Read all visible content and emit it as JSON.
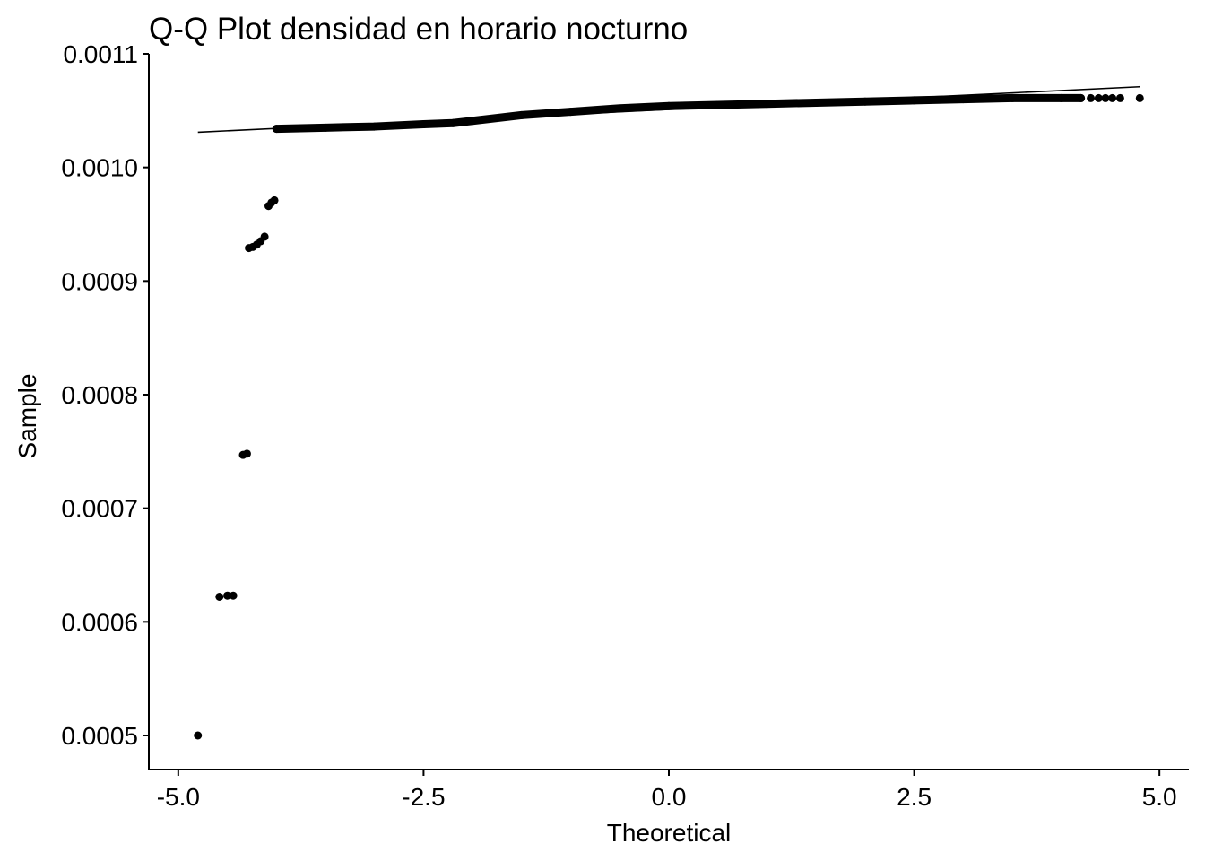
{
  "chart_data": {
    "type": "scatter",
    "title": "Q-Q Plot densidad en horario nocturno",
    "xlabel": "Theoretical",
    "ylabel": "Sample",
    "xlim": [
      -5.3,
      5.3
    ],
    "ylim": [
      0.00047,
      0.0011
    ],
    "x_ticks": [
      -5.0,
      -2.5,
      0.0,
      2.5,
      5.0
    ],
    "x_tick_labels": [
      "-5.0",
      "-2.5",
      "0.0",
      "2.5",
      "5.0"
    ],
    "y_ticks": [
      0.0005,
      0.0006,
      0.0007,
      0.0008,
      0.0009,
      0.001,
      0.0011
    ],
    "y_tick_labels": [
      "0.0005",
      "0.0006",
      "0.0007",
      "0.0008",
      "0.0009",
      "0.0010",
      "0.0011"
    ],
    "grid": false,
    "legend": "none",
    "colors": {
      "points": "#000000",
      "line": "#000000",
      "axis": "#000000"
    },
    "reference_line": {
      "x": [
        -4.8,
        4.8
      ],
      "y": [
        0.001031,
        0.001071
      ]
    },
    "outliers": [
      {
        "x": -4.8,
        "y": 0.0005
      },
      {
        "x": -4.58,
        "y": 0.000622
      },
      {
        "x": -4.5,
        "y": 0.000623
      },
      {
        "x": -4.44,
        "y": 0.000623
      },
      {
        "x": -4.34,
        "y": 0.000747
      },
      {
        "x": -4.3,
        "y": 0.000748
      },
      {
        "x": -4.28,
        "y": 0.000929
      },
      {
        "x": -4.24,
        "y": 0.00093
      },
      {
        "x": -4.2,
        "y": 0.000932
      },
      {
        "x": -4.16,
        "y": 0.000935
      },
      {
        "x": -4.12,
        "y": 0.000939
      },
      {
        "x": -4.08,
        "y": 0.000966
      },
      {
        "x": -4.05,
        "y": 0.000969
      },
      {
        "x": -4.02,
        "y": 0.000971
      }
    ],
    "main_band": [
      {
        "x": -4.0,
        "y": 0.001034
      },
      {
        "x": -3.5,
        "y": 0.001035
      },
      {
        "x": -3.0,
        "y": 0.001036
      },
      {
        "x": -2.5,
        "y": 0.001038
      },
      {
        "x": -2.2,
        "y": 0.001039
      },
      {
        "x": -2.0,
        "y": 0.001041
      },
      {
        "x": -1.5,
        "y": 0.001046
      },
      {
        "x": -1.0,
        "y": 0.001049
      },
      {
        "x": -0.5,
        "y": 0.001052
      },
      {
        "x": 0.0,
        "y": 0.001054
      },
      {
        "x": 0.5,
        "y": 0.001055
      },
      {
        "x": 1.0,
        "y": 0.001056
      },
      {
        "x": 1.5,
        "y": 0.001057
      },
      {
        "x": 2.0,
        "y": 0.001058
      },
      {
        "x": 2.5,
        "y": 0.001059
      },
      {
        "x": 3.0,
        "y": 0.00106
      },
      {
        "x": 3.5,
        "y": 0.001061
      },
      {
        "x": 4.0,
        "y": 0.001061
      },
      {
        "x": 4.2,
        "y": 0.001061
      }
    ],
    "upper_tail": [
      {
        "x": 4.3,
        "y": 0.001061
      },
      {
        "x": 4.38,
        "y": 0.001061
      },
      {
        "x": 4.45,
        "y": 0.001061
      },
      {
        "x": 4.52,
        "y": 0.001061
      },
      {
        "x": 4.6,
        "y": 0.001061
      },
      {
        "x": 4.8,
        "y": 0.001061
      }
    ]
  }
}
